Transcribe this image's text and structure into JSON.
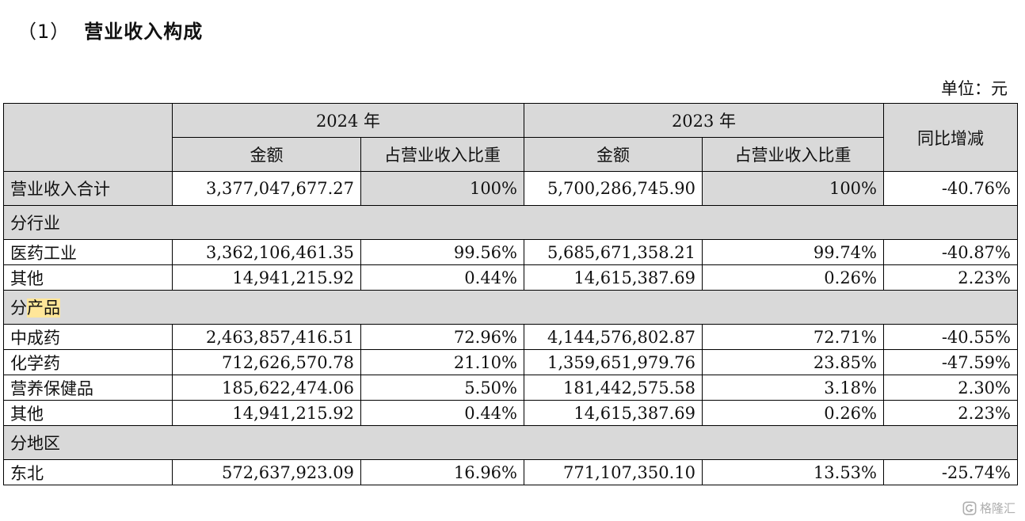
{
  "section": {
    "number": "（1）",
    "title": "营业收入构成"
  },
  "unit": "单位：元",
  "header": {
    "year_2024": "2024 年",
    "year_2023": "2023 年",
    "amount": "金额",
    "share": "占营业收入比重",
    "yoy": "同比增减"
  },
  "total": {
    "label": "营业收入合计",
    "amount_2024": "3,377,047,677.27",
    "share_2024": "100%",
    "amount_2023": "5,700,286,745.90",
    "share_2023": "100%",
    "yoy": "-40.76%"
  },
  "sections": {
    "industry": {
      "title": "分行业",
      "rows": [
        {
          "label": "医药工业",
          "amount_2024": "3,362,106,461.35",
          "share_2024": "99.56%",
          "amount_2023": "5,685,671,358.21",
          "share_2023": "99.74%",
          "yoy": "-40.87%"
        },
        {
          "label": "其他",
          "amount_2024": "14,941,215.92",
          "share_2024": "0.44%",
          "amount_2023": "14,615,387.69",
          "share_2023": "0.26%",
          "yoy": "2.23%"
        }
      ]
    },
    "product": {
      "title_prefix": "分",
      "title_highlight": "产品",
      "rows": [
        {
          "label": "中成药",
          "amount_2024": "2,463,857,416.51",
          "share_2024": "72.96%",
          "amount_2023": "4,144,576,802.87",
          "share_2023": "72.71%",
          "yoy": "-40.55%"
        },
        {
          "label": "化学药",
          "amount_2024": "712,626,570.78",
          "share_2024": "21.10%",
          "amount_2023": "1,359,651,979.76",
          "share_2023": "23.85%",
          "yoy": "-47.59%"
        },
        {
          "label": "营养保健品",
          "amount_2024": "185,622,474.06",
          "share_2024": "5.50%",
          "amount_2023": "181,442,575.58",
          "share_2023": "3.18%",
          "yoy": "2.30%"
        },
        {
          "label": "其他",
          "amount_2024": "14,941,215.92",
          "share_2024": "0.44%",
          "amount_2023": "14,615,387.69",
          "share_2023": "0.26%",
          "yoy": "2.23%"
        }
      ]
    },
    "region": {
      "title": "分地区",
      "rows": [
        {
          "label": "东北",
          "amount_2024": "572,637,923.09",
          "share_2024": "16.96%",
          "amount_2023": "771,107,350.10",
          "share_2023": "13.53%",
          "yoy": "-25.74%"
        }
      ]
    }
  },
  "watermark": {
    "text": "格隆汇",
    "icon": "gelonghui-logo-icon"
  }
}
